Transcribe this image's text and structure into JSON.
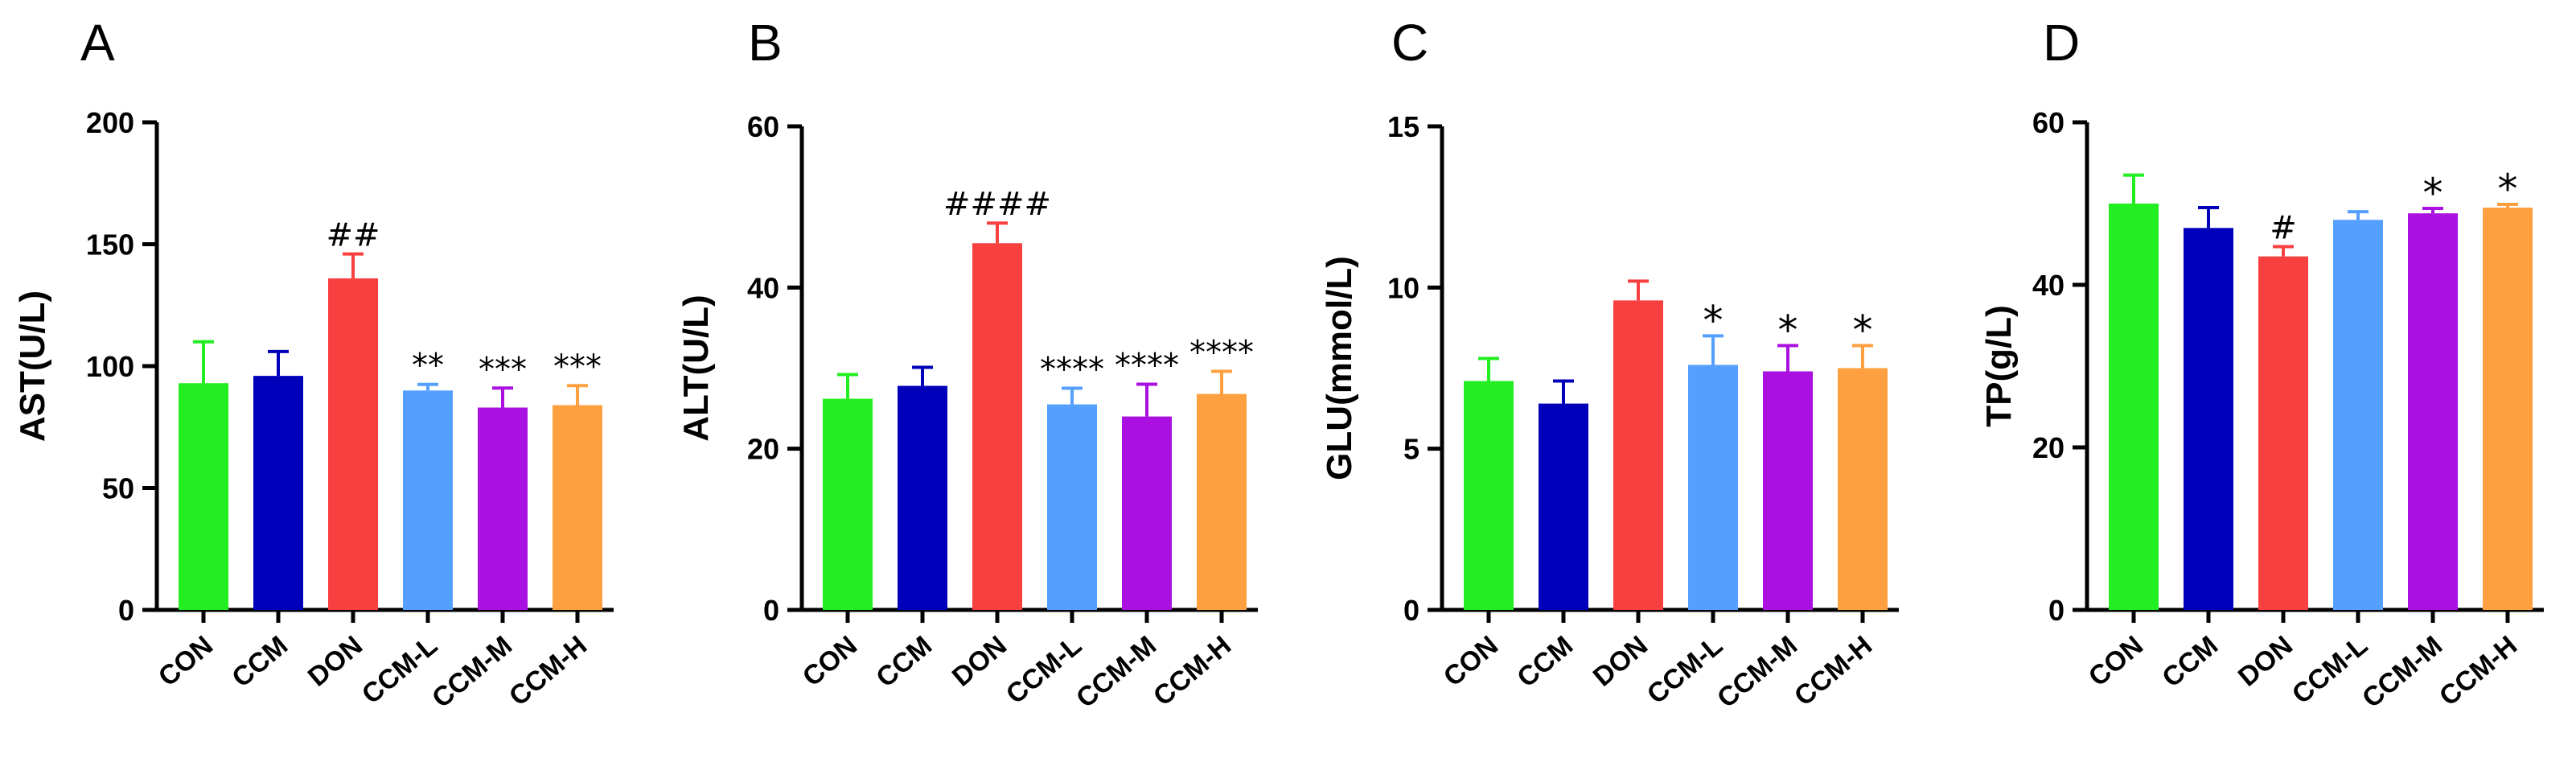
{
  "colors": {
    "CON": "#22EE22",
    "CCM": "#0000BB",
    "DON": "#F94040",
    "CCM-L": "#55A0FF",
    "CCM-M": "#AA10E0",
    "CCM-H": "#FFA040"
  },
  "chart_data": [
    {
      "type": "bar",
      "panel": "A",
      "ylabel": "AST(U/L)",
      "ylim": [
        0,
        200
      ],
      "yticks": [
        "0",
        "50",
        "100",
        "150",
        "200"
      ],
      "categories": [
        "CON",
        "CCM",
        "DON",
        "CCM-L",
        "CCM-M",
        "CCM-H"
      ],
      "values": [
        93,
        96,
        136,
        90,
        83,
        84
      ],
      "errors": [
        17,
        10,
        10,
        2.5,
        8,
        8
      ],
      "annotations": [
        "",
        "",
        "##",
        "**",
        "***",
        "***"
      ]
    },
    {
      "type": "bar",
      "panel": "B",
      "ylabel": "ALT(U/L)",
      "ylim": [
        0,
        60
      ],
      "yticks": [
        "0",
        "20",
        "40",
        "60"
      ],
      "categories": [
        "CON",
        "CCM",
        "DON",
        "CCM-L",
        "CCM-M",
        "CCM-H"
      ],
      "values": [
        26.2,
        27.8,
        45.5,
        25.5,
        24,
        26.8
      ],
      "errors": [
        3,
        2.3,
        2.5,
        2,
        4,
        2.8
      ],
      "annotations": [
        "",
        "",
        "####",
        "****",
        "****",
        "****"
      ]
    },
    {
      "type": "bar",
      "panel": "C",
      "ylabel": "GLU(mmol/L)",
      "ylim": [
        0,
        15
      ],
      "yticks": [
        "0",
        "5",
        "10",
        "15"
      ],
      "categories": [
        "CON",
        "CCM",
        "DON",
        "CCM-L",
        "CCM-M",
        "CCM-H"
      ],
      "values": [
        7.1,
        6.4,
        9.6,
        7.6,
        7.4,
        7.5
      ],
      "errors": [
        0.7,
        0.7,
        0.6,
        0.9,
        0.8,
        0.7
      ],
      "annotations": [
        "",
        "",
        "",
        "*",
        "*",
        "*"
      ]
    },
    {
      "type": "bar",
      "panel": "D",
      "ylabel": "TP(g/L)",
      "ylim": [
        0,
        60
      ],
      "yticks": [
        "0",
        "20",
        "40",
        "60"
      ],
      "categories": [
        "CON",
        "CCM",
        "DON",
        "CCM-L",
        "CCM-M",
        "CCM-H"
      ],
      "values": [
        50,
        47,
        43.5,
        48,
        48.8,
        49.5
      ],
      "errors": [
        3.5,
        2.5,
        1.2,
        1,
        0.6,
        0.4
      ],
      "annotations": [
        "",
        "",
        "#",
        "",
        "*",
        "*"
      ]
    }
  ]
}
